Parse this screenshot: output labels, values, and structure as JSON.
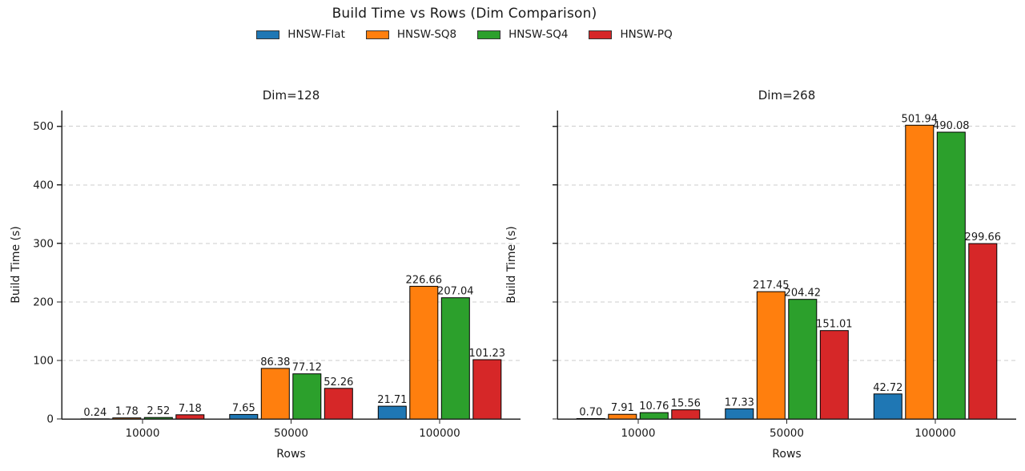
{
  "header": {
    "title": "Build Time vs Rows (Dim Comparison)"
  },
  "legend": {
    "items": [
      {
        "label": "HNSW-Flat",
        "color": "#1f77b4"
      },
      {
        "label": "HNSW-SQ8",
        "color": "#ff7f0e"
      },
      {
        "label": "HNSW-SQ4",
        "color": "#2ca02c"
      },
      {
        "label": "HNSW-PQ",
        "color": "#d62728"
      }
    ]
  },
  "chart_data": [
    {
      "type": "bar",
      "title": "Dim=128",
      "xlabel": "Rows",
      "ylabel": "Build Time (s)",
      "categories": [
        "10000",
        "50000",
        "100000"
      ],
      "series": [
        {
          "name": "HNSW-Flat",
          "color": "#1f77b4",
          "values": [
            0.24,
            7.65,
            21.71
          ]
        },
        {
          "name": "HNSW-SQ8",
          "color": "#ff7f0e",
          "values": [
            1.78,
            86.38,
            226.66
          ]
        },
        {
          "name": "HNSW-SQ4",
          "color": "#2ca02c",
          "values": [
            2.52,
            77.12,
            207.04
          ]
        },
        {
          "name": "HNSW-PQ",
          "color": "#d62728",
          "values": [
            7.18,
            52.26,
            101.23
          ]
        }
      ],
      "yticks": [
        0,
        100,
        200,
        300,
        400,
        500
      ],
      "ylim": [
        0,
        527
      ],
      "grid": "horizontal-dashed",
      "bar_labels": true,
      "show_y_tick_labels": true,
      "legend_position": "figure-top-center"
    },
    {
      "type": "bar",
      "title": "Dim=268",
      "xlabel": "Rows",
      "ylabel": "Build Time (s)",
      "categories": [
        "10000",
        "50000",
        "100000"
      ],
      "series": [
        {
          "name": "HNSW-Flat",
          "color": "#1f77b4",
          "values": [
            0.7,
            17.33,
            42.72
          ]
        },
        {
          "name": "HNSW-SQ8",
          "color": "#ff7f0e",
          "values": [
            7.91,
            217.45,
            501.94
          ]
        },
        {
          "name": "HNSW-SQ4",
          "color": "#2ca02c",
          "values": [
            10.76,
            204.42,
            490.08
          ]
        },
        {
          "name": "HNSW-PQ",
          "color": "#d62728",
          "values": [
            15.56,
            151.01,
            299.66
          ]
        }
      ],
      "yticks": [
        0,
        100,
        200,
        300,
        400,
        500
      ],
      "ylim": [
        0,
        527
      ],
      "grid": "horizontal-dashed",
      "bar_labels": true,
      "show_y_tick_labels": false,
      "legend_position": "figure-top-center"
    }
  ]
}
